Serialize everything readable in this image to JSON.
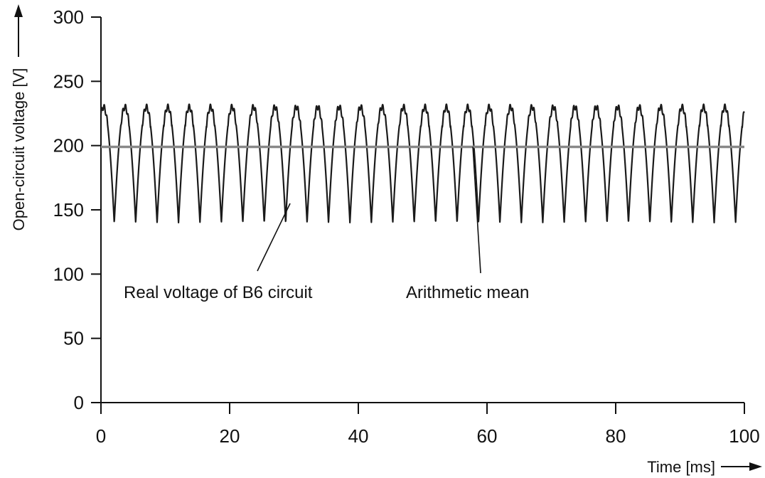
{
  "chart_data": {
    "type": "line",
    "xlabel": "Time [ms]",
    "ylabel": "Open-circuit voltage [V]",
    "xlim": [
      0,
      100
    ],
    "ylim": [
      0,
      300
    ],
    "xticks": [
      0,
      20,
      40,
      60,
      80,
      100
    ],
    "yticks": [
      0,
      50,
      100,
      150,
      200,
      250,
      300
    ],
    "grid": false,
    "series": [
      {
        "name": "Real voltage of B6 circuit",
        "waveform": "six-pulse rectified ripple",
        "max": 230,
        "min": 140,
        "ripple_period_ms": 3.33,
        "color": "#1a1a1a"
      },
      {
        "name": "Arithmetic mean",
        "value": 199,
        "color": "#888888"
      }
    ],
    "annotations": [
      {
        "text": "Real voltage of B6 circuit",
        "target_x": 29.4,
        "target_y": 155
      },
      {
        "text": "Arithmetic mean",
        "target_x": 57.8,
        "target_y": 199
      }
    ]
  }
}
